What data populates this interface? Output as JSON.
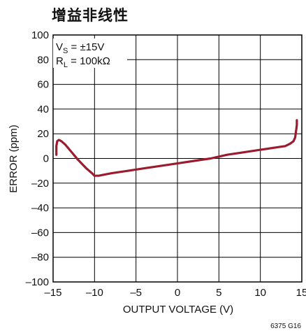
{
  "title": "增益非线性",
  "figure_id": "6375 G16",
  "annotations": {
    "vs_main": "V",
    "vs_sub": "S",
    "vs_rest": " = ±15V",
    "rl_main": "R",
    "rl_sub": "L",
    "rl_rest": " = 100kΩ"
  },
  "colors": {
    "line": "#9b1c2e",
    "grid": "#000000"
  },
  "chart_data": {
    "type": "line",
    "xlabel": "OUTPUT VOLTAGE (V)",
    "ylabel": "ERROR (ppm)",
    "xlim": [
      -15,
      15
    ],
    "ylim": [
      -100,
      100
    ],
    "xticks": [
      -15,
      -10,
      -5,
      0,
      5,
      10,
      15
    ],
    "yticks": [
      100,
      80,
      60,
      40,
      20,
      0,
      -20,
      -40,
      -60,
      -80,
      -100
    ],
    "xtick_labels": [
      "–15",
      "–10",
      "–5",
      "0",
      "5",
      "10",
      "15"
    ],
    "ytick_labels": [
      "100",
      "80",
      "60",
      "40",
      "20",
      "0",
      "–20",
      "–40",
      "–60",
      "–80",
      "–100"
    ],
    "grid": true,
    "series": [
      {
        "x": [
          -14.6,
          -14.6,
          -14.5,
          -14.3,
          -14.0,
          -13.5,
          -13.0,
          -12.0,
          -11.0,
          -10.3,
          -10.0,
          -9.5,
          -8.0,
          -6.0,
          -4.0,
          -2.0,
          0.0,
          2.0,
          4.0,
          6.0,
          8.0,
          10.0,
          12.0,
          13.0,
          13.6,
          14.0,
          14.2,
          14.3,
          14.4,
          14.4
        ],
        "y": [
          3,
          10,
          14,
          15,
          14,
          11,
          7,
          -1,
          -8,
          -12,
          -14,
          -14,
          -12,
          -10,
          -8,
          -6,
          -4,
          -2,
          0,
          3,
          5,
          7,
          9,
          10,
          12,
          14,
          17,
          22,
          27,
          31
        ]
      }
    ]
  }
}
